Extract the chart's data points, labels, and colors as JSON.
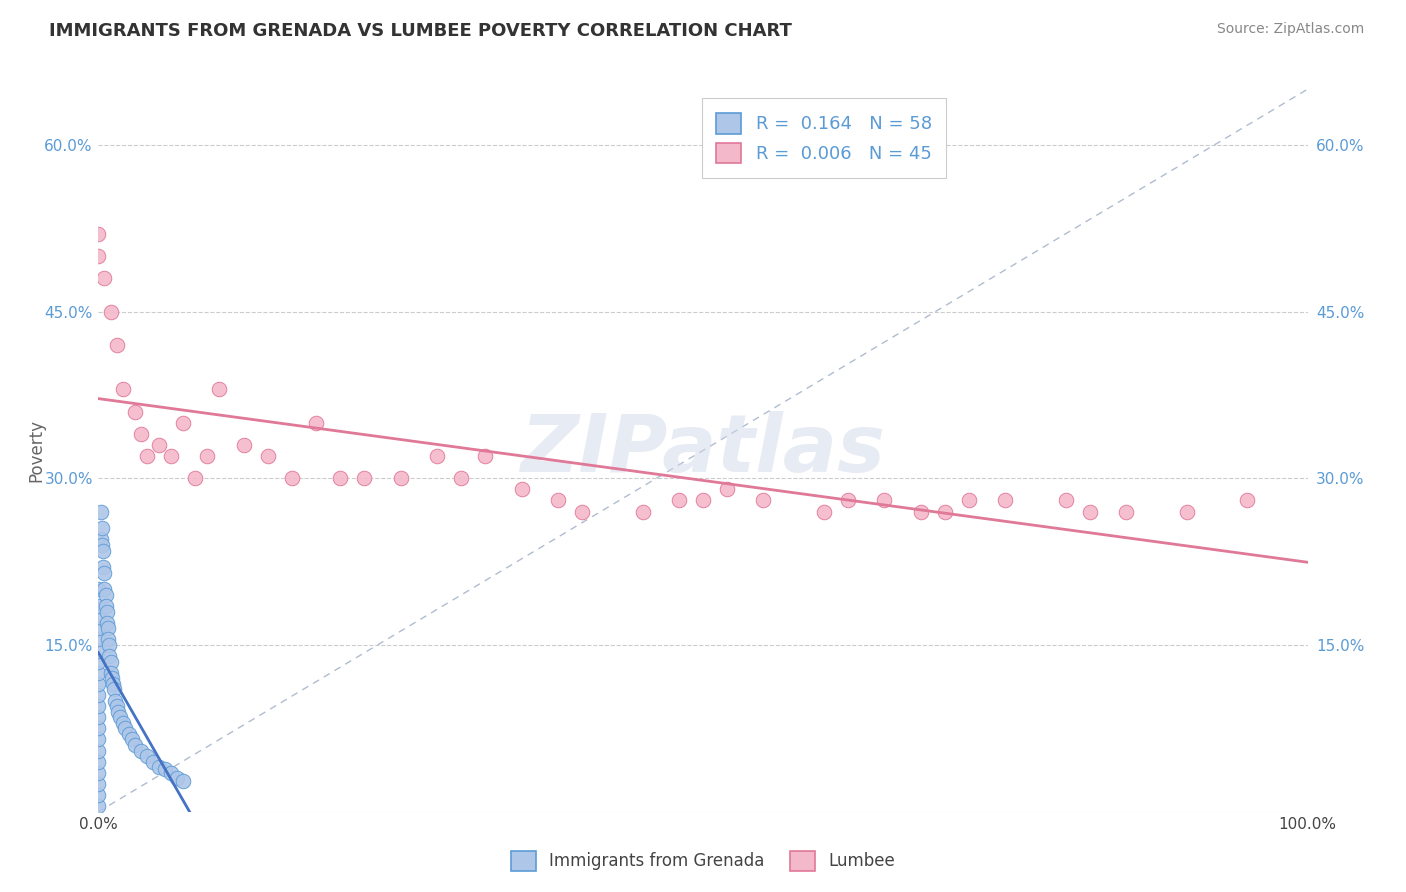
{
  "title": "IMMIGRANTS FROM GRENADA VS LUMBEE POVERTY CORRELATION CHART",
  "source": "Source: ZipAtlas.com",
  "ylabel": "Poverty",
  "x_min": 0.0,
  "x_max": 1.0,
  "y_min": 0.0,
  "y_max": 0.65,
  "y_ticks": [
    0.0,
    0.15,
    0.3,
    0.45,
    0.6
  ],
  "blue_R": 0.164,
  "blue_N": 58,
  "pink_R": 0.006,
  "pink_N": 45,
  "blue_color": "#aec6e8",
  "blue_edge": "#5b9bd5",
  "pink_color": "#f4b8cb",
  "pink_edge": "#e07898",
  "blue_line_color": "#4472c4",
  "pink_line_color": "#e07898",
  "diagonal_color": "#b0bcd0",
  "watermark": "ZIPatlas",
  "legend_label_blue": "Immigrants from Grenada",
  "legend_label_pink": "Lumbee",
  "blue_x": [
    0.0,
    0.0,
    0.0,
    0.0,
    0.0,
    0.0,
    0.0,
    0.0,
    0.0,
    0.0,
    0.0,
    0.0,
    0.0,
    0.0,
    0.0,
    0.0,
    0.0,
    0.0,
    0.0,
    0.0,
    0.002,
    0.002,
    0.003,
    0.003,
    0.004,
    0.004,
    0.005,
    0.005,
    0.006,
    0.006,
    0.007,
    0.007,
    0.008,
    0.008,
    0.009,
    0.009,
    0.01,
    0.01,
    0.011,
    0.012,
    0.013,
    0.014,
    0.015,
    0.016,
    0.018,
    0.02,
    0.022,
    0.025,
    0.028,
    0.03,
    0.035,
    0.04,
    0.045,
    0.05,
    0.055,
    0.06,
    0.065,
    0.07
  ],
  "blue_y": [
    0.005,
    0.015,
    0.025,
    0.035,
    0.045,
    0.055,
    0.065,
    0.075,
    0.085,
    0.095,
    0.105,
    0.115,
    0.125,
    0.135,
    0.145,
    0.155,
    0.165,
    0.175,
    0.185,
    0.2,
    0.27,
    0.245,
    0.24,
    0.255,
    0.235,
    0.22,
    0.215,
    0.2,
    0.195,
    0.185,
    0.18,
    0.17,
    0.165,
    0.155,
    0.15,
    0.14,
    0.135,
    0.125,
    0.12,
    0.115,
    0.11,
    0.1,
    0.095,
    0.09,
    0.085,
    0.08,
    0.075,
    0.07,
    0.065,
    0.06,
    0.055,
    0.05,
    0.045,
    0.04,
    0.038,
    0.035,
    0.03,
    0.028
  ],
  "pink_x": [
    0.0,
    0.0,
    0.005,
    0.01,
    0.015,
    0.02,
    0.03,
    0.035,
    0.04,
    0.05,
    0.06,
    0.07,
    0.08,
    0.09,
    0.1,
    0.12,
    0.14,
    0.16,
    0.18,
    0.2,
    0.22,
    0.25,
    0.28,
    0.3,
    0.32,
    0.35,
    0.38,
    0.4,
    0.45,
    0.48,
    0.5,
    0.52,
    0.55,
    0.6,
    0.62,
    0.65,
    0.68,
    0.7,
    0.72,
    0.75,
    0.8,
    0.82,
    0.85,
    0.9,
    0.95
  ],
  "pink_y": [
    0.5,
    0.52,
    0.48,
    0.45,
    0.42,
    0.38,
    0.36,
    0.34,
    0.32,
    0.33,
    0.32,
    0.35,
    0.3,
    0.32,
    0.38,
    0.33,
    0.32,
    0.3,
    0.35,
    0.3,
    0.3,
    0.3,
    0.32,
    0.3,
    0.32,
    0.29,
    0.28,
    0.27,
    0.27,
    0.28,
    0.28,
    0.29,
    0.28,
    0.27,
    0.28,
    0.28,
    0.27,
    0.27,
    0.28,
    0.28,
    0.28,
    0.27,
    0.27,
    0.27,
    0.28
  ],
  "blue_line_x0": 0.0,
  "blue_line_x1": 0.07,
  "blue_line_y0": 0.285,
  "blue_line_y1": 0.01,
  "pink_line_y": 0.278
}
